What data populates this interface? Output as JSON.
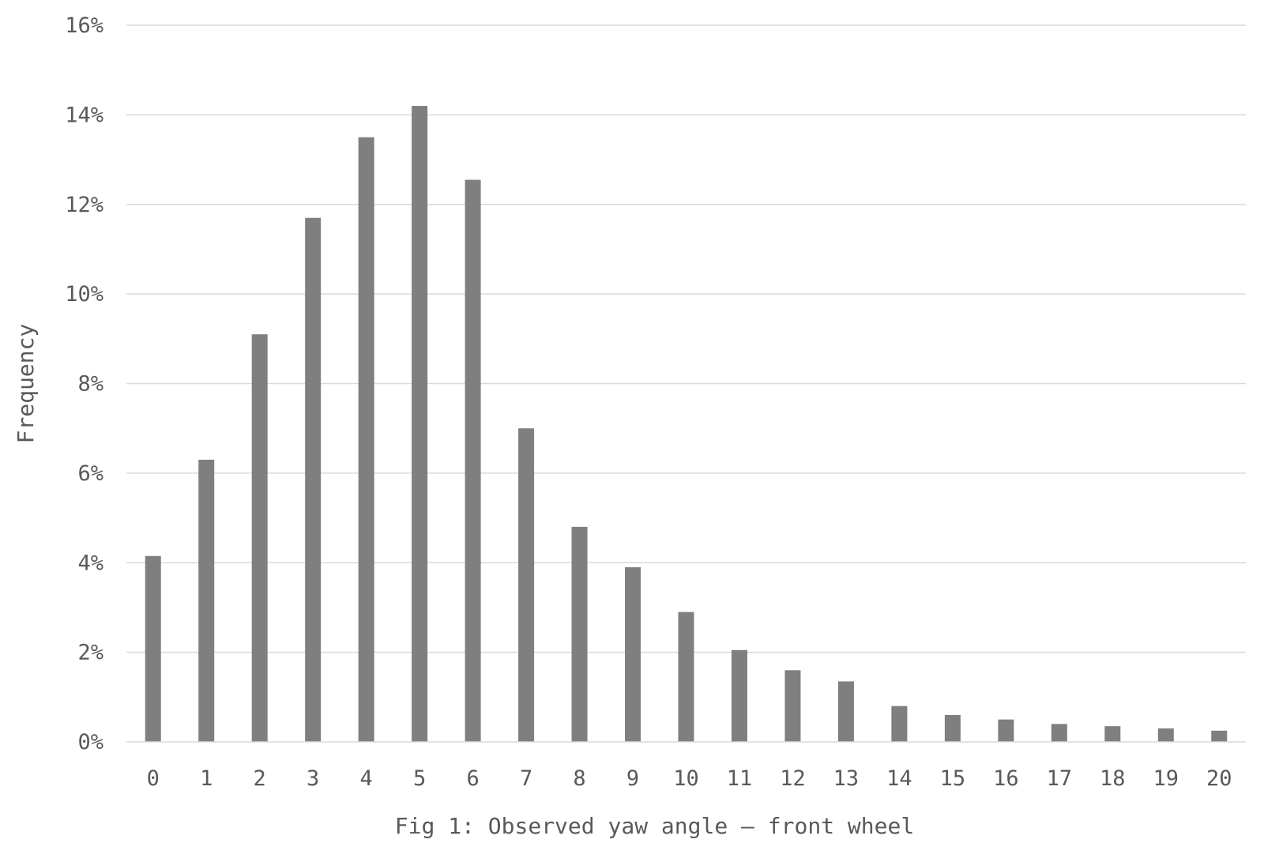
{
  "chart_data": {
    "type": "bar",
    "title": "",
    "xlabel": "Fig 1: Observed yaw angle – front wheel",
    "ylabel": "Frequency",
    "categories": [
      "0",
      "1",
      "2",
      "3",
      "4",
      "5",
      "6",
      "7",
      "8",
      "9",
      "10",
      "11",
      "12",
      "13",
      "14",
      "15",
      "16",
      "17",
      "18",
      "19",
      "20"
    ],
    "values": [
      4.15,
      6.3,
      9.1,
      11.7,
      13.5,
      14.2,
      12.55,
      7.0,
      4.8,
      3.9,
      2.9,
      2.05,
      1.6,
      1.35,
      0.8,
      0.6,
      0.5,
      0.4,
      0.35,
      0.3,
      0.25
    ],
    "ylim": [
      0,
      16
    ],
    "yticks": [
      "0%",
      "2%",
      "4%",
      "6%",
      "8%",
      "10%",
      "12%",
      "14%",
      "16%"
    ],
    "grid": true,
    "legend": "none",
    "colors": {
      "bar": "#7f7f7f",
      "grid": "#d9d9d9",
      "text": "#595959"
    }
  }
}
